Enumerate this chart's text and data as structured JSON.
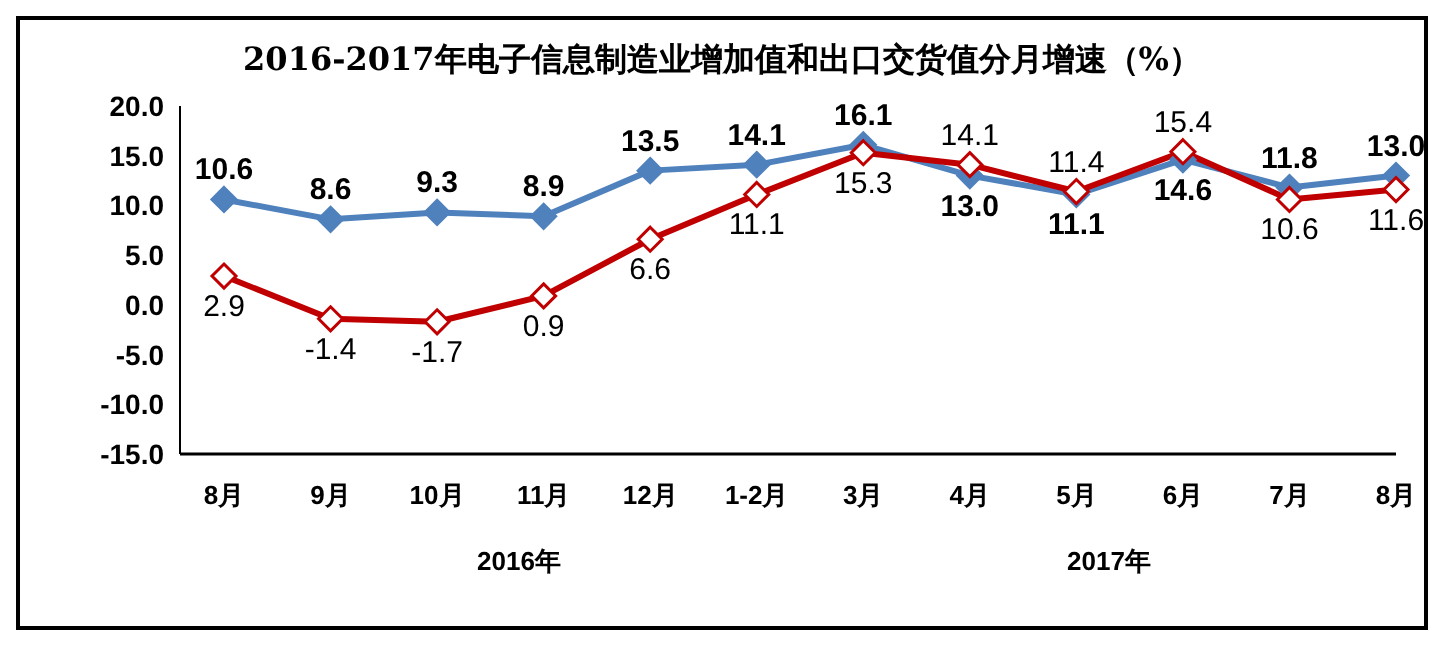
{
  "chart_data": {
    "type": "line",
    "title": "2016-2017年电子信息制造业增加值和出口交货值分月增速（%）",
    "categories": [
      "8月",
      "9月",
      "10月",
      "11月",
      "12月",
      "1-2月",
      "3月",
      "4月",
      "5月",
      "6月",
      "7月",
      "8月"
    ],
    "series": [
      {
        "color": "#4f81bd",
        "values": [
          10.6,
          8.6,
          9.3,
          8.9,
          13.5,
          14.1,
          16.1,
          13.0,
          11.1,
          14.6,
          11.8,
          13.0
        ],
        "value_labels": [
          "10.6",
          "8.6",
          "9.3",
          "8.9",
          "13.5",
          "14.1",
          "16.1",
          "13.0",
          "11.1",
          "14.6",
          "11.8",
          "13.0"
        ]
      },
      {
        "color": "#c00000",
        "values": [
          2.9,
          -1.4,
          -1.7,
          0.9,
          6.6,
          11.1,
          15.3,
          14.1,
          11.4,
          15.4,
          10.6,
          11.6
        ],
        "value_labels": [
          "2.9",
          "-1.4",
          "-1.7",
          "0.9",
          "6.6",
          "11.1",
          "15.3",
          "14.1",
          "11.4",
          "15.4",
          "10.6",
          "11.6"
        ]
      }
    ],
    "ylim": [
      -15,
      20
    ],
    "yticks": [
      {
        "value": -15,
        "label": "-15.0"
      },
      {
        "value": -10,
        "label": "-10.0"
      },
      {
        "value": -5,
        "label": "-5.0"
      },
      {
        "value": 0,
        "label": "0.0"
      },
      {
        "value": 5,
        "label": "5.0"
      },
      {
        "value": 10,
        "label": "10.0"
      },
      {
        "value": 15,
        "label": "15.0"
      },
      {
        "value": 20,
        "label": "20.0"
      }
    ],
    "annotations": [
      "2016年",
      "2017年"
    ],
    "marker": "diamond",
    "line_style": "solid",
    "grid": false,
    "legend": false
  }
}
